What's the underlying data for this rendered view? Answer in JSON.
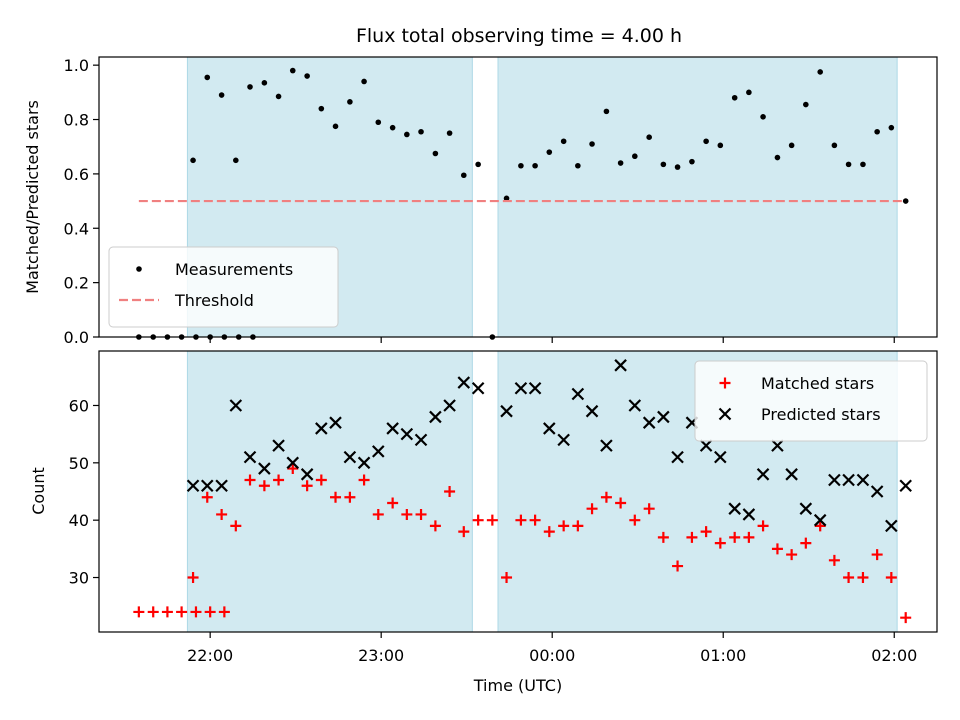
{
  "chart_data": {
    "type": "scatter",
    "title": "Flux total observing time = 4.00 h",
    "xlabel": "Time (UTC)",
    "x_unit": "hours (UTC, 24 = 00:00 next day)",
    "xlim": [
      21.35,
      26.25
    ],
    "xticks": [
      {
        "value": 22,
        "label": "22:00"
      },
      {
        "value": 23,
        "label": "23:00"
      },
      {
        "value": 24,
        "label": "00:00"
      },
      {
        "value": 25,
        "label": "01:00"
      },
      {
        "value": 26,
        "label": "02:00"
      }
    ],
    "shaded_spans": [
      [
        21.867,
        23.533
      ],
      [
        23.683,
        26.017
      ]
    ],
    "shade_color": "#add8e6",
    "panels": [
      {
        "ylabel": "Matched/Predicted stars",
        "ylim": [
          0.0,
          1.03
        ],
        "yticks": [
          {
            "value": 0.0,
            "label": "0.0"
          },
          {
            "value": 0.2,
            "label": "0.2"
          },
          {
            "value": 0.4,
            "label": "0.4"
          },
          {
            "value": 0.6,
            "label": "0.6"
          },
          {
            "value": 0.8,
            "label": "0.8"
          },
          {
            "value": 1.0,
            "label": "1.0"
          }
        ],
        "legend_position": "lower-left",
        "series": [
          {
            "name": "Measurements",
            "marker": "dot",
            "color": "#000000",
            "points": [
              [
                21.583,
                0.0
              ],
              [
                21.667,
                0.0
              ],
              [
                21.75,
                0.0
              ],
              [
                21.833,
                0.0
              ],
              [
                21.917,
                0.0
              ],
              [
                22.0,
                0.0
              ],
              [
                22.083,
                0.0
              ],
              [
                22.167,
                0.0
              ],
              [
                22.25,
                0.0
              ],
              [
                21.9,
                0.65
              ],
              [
                21.983,
                0.955
              ],
              [
                22.067,
                0.89
              ],
              [
                22.15,
                0.65
              ],
              [
                22.233,
                0.92
              ],
              [
                22.317,
                0.935
              ],
              [
                22.4,
                0.885
              ],
              [
                22.483,
                0.98
              ],
              [
                22.567,
                0.96
              ],
              [
                22.65,
                0.84
              ],
              [
                22.733,
                0.775
              ],
              [
                22.817,
                0.865
              ],
              [
                22.9,
                0.94
              ],
              [
                22.983,
                0.79
              ],
              [
                23.067,
                0.77
              ],
              [
                23.15,
                0.745
              ],
              [
                23.233,
                0.755
              ],
              [
                23.317,
                0.675
              ],
              [
                23.4,
                0.75
              ],
              [
                23.483,
                0.595
              ],
              [
                23.567,
                0.635
              ],
              [
                23.65,
                0.0
              ],
              [
                23.733,
                0.51
              ],
              [
                23.817,
                0.63
              ],
              [
                23.9,
                0.63
              ],
              [
                23.983,
                0.68
              ],
              [
                24.067,
                0.72
              ],
              [
                24.15,
                0.63
              ],
              [
                24.233,
                0.71
              ],
              [
                24.317,
                0.83
              ],
              [
                24.4,
                0.64
              ],
              [
                24.483,
                0.665
              ],
              [
                24.567,
                0.735
              ],
              [
                24.65,
                0.635
              ],
              [
                24.733,
                0.625
              ],
              [
                24.817,
                0.645
              ],
              [
                24.9,
                0.72
              ],
              [
                24.983,
                0.705
              ],
              [
                25.067,
                0.88
              ],
              [
                25.15,
                0.9
              ],
              [
                25.233,
                0.81
              ],
              [
                25.317,
                0.66
              ],
              [
                25.4,
                0.705
              ],
              [
                25.483,
                0.855
              ],
              [
                25.567,
                0.975
              ],
              [
                25.65,
                0.705
              ],
              [
                25.733,
                0.635
              ],
              [
                25.817,
                0.635
              ],
              [
                25.9,
                0.755
              ],
              [
                25.983,
                0.77
              ],
              [
                26.067,
                0.5
              ]
            ]
          },
          {
            "name": "Threshold",
            "marker": "dashed-line",
            "color": "#f08080",
            "points": [
              [
                21.583,
                0.5
              ],
              [
                26.067,
                0.5
              ]
            ]
          }
        ]
      },
      {
        "ylabel": "Count",
        "ylim": [
          20.5,
          69.5
        ],
        "yticks": [
          {
            "value": 30,
            "label": "30"
          },
          {
            "value": 40,
            "label": "40"
          },
          {
            "value": 50,
            "label": "50"
          },
          {
            "value": 60,
            "label": "60"
          }
        ],
        "legend_position": "upper-right",
        "series": [
          {
            "name": "Matched stars",
            "marker": "plus",
            "color": "#ff0000",
            "points": [
              [
                21.583,
                24
              ],
              [
                21.667,
                24
              ],
              [
                21.75,
                24
              ],
              [
                21.833,
                24
              ],
              [
                21.917,
                24
              ],
              [
                22.0,
                24
              ],
              [
                22.083,
                24
              ],
              [
                21.9,
                30
              ],
              [
                21.983,
                44
              ],
              [
                22.067,
                41
              ],
              [
                22.15,
                39
              ],
              [
                22.233,
                47
              ],
              [
                22.317,
                46
              ],
              [
                22.4,
                47
              ],
              [
                22.483,
                49
              ],
              [
                22.567,
                46
              ],
              [
                22.65,
                47
              ],
              [
                22.733,
                44
              ],
              [
                22.817,
                44
              ],
              [
                22.9,
                47
              ],
              [
                22.983,
                41
              ],
              [
                23.067,
                43
              ],
              [
                23.15,
                41
              ],
              [
                23.233,
                41
              ],
              [
                23.317,
                39
              ],
              [
                23.4,
                45
              ],
              [
                23.483,
                38
              ],
              [
                23.567,
                40
              ],
              [
                23.65,
                40
              ],
              [
                23.733,
                30
              ],
              [
                23.817,
                40
              ],
              [
                23.9,
                40
              ],
              [
                23.983,
                38
              ],
              [
                24.067,
                39
              ],
              [
                24.15,
                39
              ],
              [
                24.233,
                42
              ],
              [
                24.317,
                44
              ],
              [
                24.4,
                43
              ],
              [
                24.483,
                40
              ],
              [
                24.567,
                42
              ],
              [
                24.65,
                37
              ],
              [
                24.733,
                32
              ],
              [
                24.817,
                37
              ],
              [
                24.9,
                38
              ],
              [
                24.983,
                36
              ],
              [
                25.067,
                37
              ],
              [
                25.15,
                37
              ],
              [
                25.233,
                39
              ],
              [
                25.317,
                35
              ],
              [
                25.4,
                34
              ],
              [
                25.483,
                36
              ],
              [
                25.567,
                39
              ],
              [
                25.65,
                33
              ],
              [
                25.733,
                30
              ],
              [
                25.817,
                30
              ],
              [
                25.9,
                34
              ],
              [
                25.983,
                30
              ],
              [
                26.067,
                23
              ]
            ]
          },
          {
            "name": "Predicted stars",
            "marker": "x",
            "color": "#000000",
            "points": [
              [
                21.9,
                46
              ],
              [
                21.983,
                46
              ],
              [
                22.067,
                46
              ],
              [
                22.15,
                60
              ],
              [
                22.233,
                51
              ],
              [
                22.317,
                49
              ],
              [
                22.4,
                53
              ],
              [
                22.483,
                50
              ],
              [
                22.567,
                48
              ],
              [
                22.65,
                56
              ],
              [
                22.733,
                57
              ],
              [
                22.817,
                51
              ],
              [
                22.9,
                50
              ],
              [
                22.983,
                52
              ],
              [
                23.067,
                56
              ],
              [
                23.15,
                55
              ],
              [
                23.233,
                54
              ],
              [
                23.317,
                58
              ],
              [
                23.4,
                60
              ],
              [
                23.483,
                64
              ],
              [
                23.567,
                63
              ],
              [
                23.733,
                59
              ],
              [
                23.817,
                63
              ],
              [
                23.9,
                63
              ],
              [
                23.983,
                56
              ],
              [
                24.067,
                54
              ],
              [
                24.15,
                62
              ],
              [
                24.233,
                59
              ],
              [
                24.317,
                53
              ],
              [
                24.4,
                67
              ],
              [
                24.483,
                60
              ],
              [
                24.567,
                57
              ],
              [
                24.65,
                58
              ],
              [
                24.733,
                51
              ],
              [
                24.817,
                57
              ],
              [
                24.9,
                53
              ],
              [
                24.983,
                51
              ],
              [
                25.067,
                42
              ],
              [
                25.15,
                41
              ],
              [
                25.233,
                48
              ],
              [
                25.317,
                53
              ],
              [
                25.4,
                48
              ],
              [
                25.483,
                42
              ],
              [
                25.567,
                40
              ],
              [
                25.65,
                47
              ],
              [
                25.733,
                47
              ],
              [
                25.817,
                47
              ],
              [
                25.9,
                45
              ],
              [
                25.983,
                39
              ],
              [
                26.067,
                46
              ]
            ]
          }
        ]
      }
    ]
  }
}
